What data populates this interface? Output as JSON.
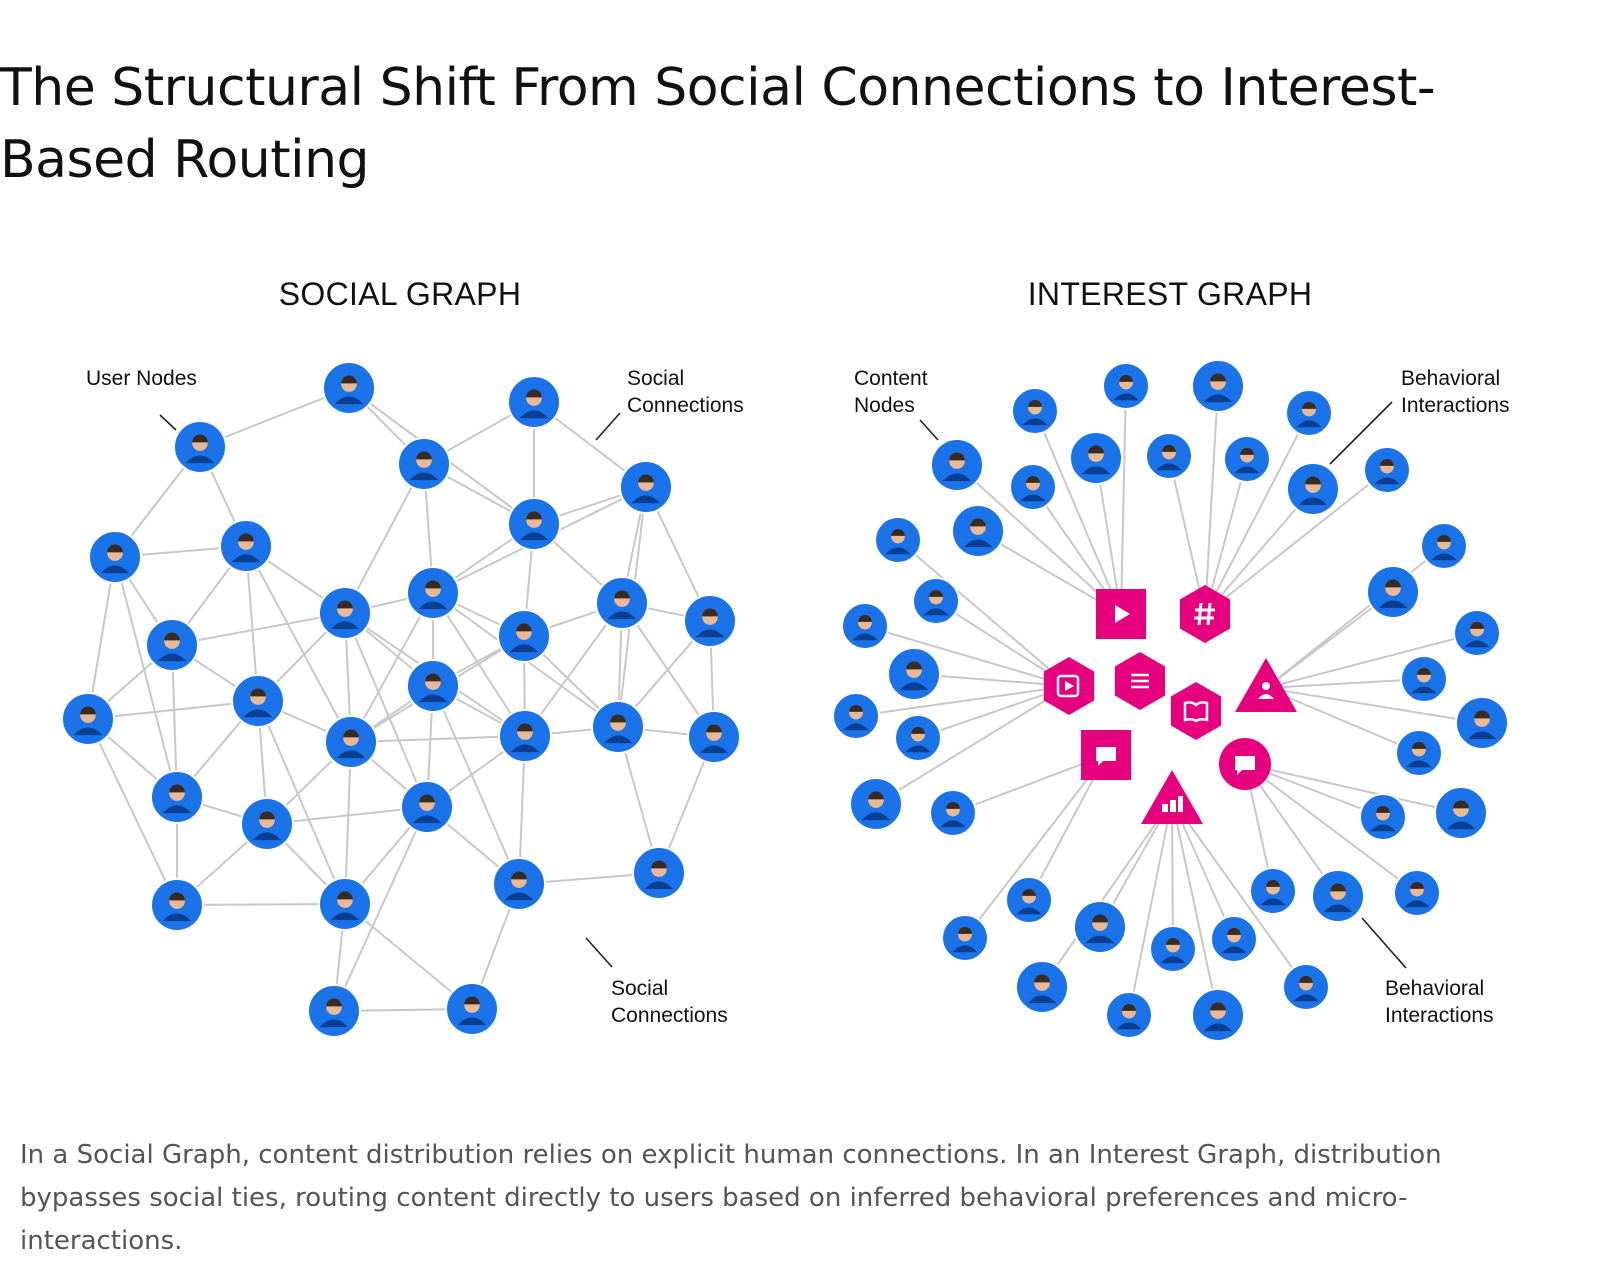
{
  "title": "The Structural Shift From Social Connections to Interest-Based Routing",
  "panels": [
    {
      "title": "SOCIAL GRAPH",
      "annotations": [
        "User Nodes",
        "Social Connections",
        "Social Connections"
      ]
    },
    {
      "title": "INTEREST GRAPH",
      "annotations": [
        "Content Nodes",
        "Behavioral Interactions",
        "Behavioral Interactions"
      ]
    }
  ],
  "caption": "In a Social Graph, content distribution relies on explicit human connections. In an Interest Graph, distribution bypasses social ties, routing content directly to users based on inferred behavioral preferences and micro-interactions."
}
